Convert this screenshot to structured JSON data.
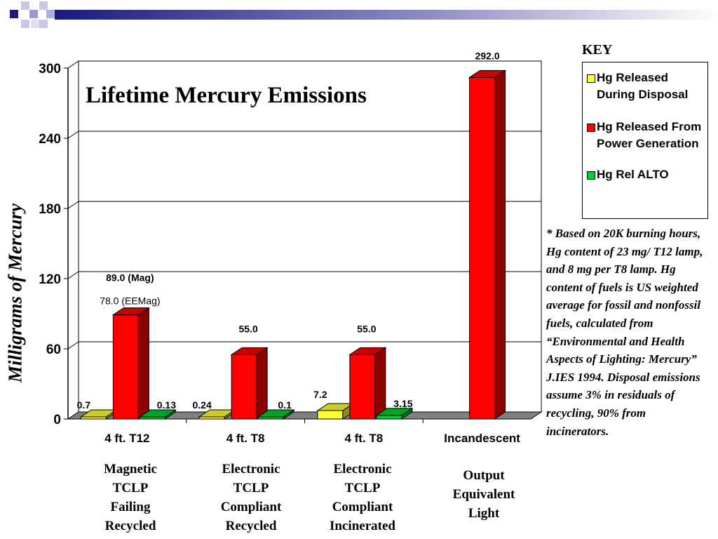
{
  "title": "Lifetime Mercury Emissions",
  "ylabel": "Milligrams of Mercury",
  "key_title": "KEY",
  "legend": [
    {
      "label": "Hg Released During Disposal",
      "color": "#ffff33"
    },
    {
      "label": "Hg Released From Power Generation",
      "color": "#ff0000"
    },
    {
      "label": "Hg Rel ALTO",
      "color": "#00cc33"
    }
  ],
  "footnote": "* Based on 20K burning hours, Hg content of 23 mg/ T12 lamp, and 8 mg per T8 lamp.  Hg content of fuels is US weighted average for fossil and nonfossil fuels, calculated from “Environmental and Health Aspects of Lighting: Mercury” J.IES 1994.  Disposal emissions assume 3%  in residuals of recycling, 90%  from incinerators.",
  "category_descriptions": [
    "Magnetic\nTCLP\nFailing\nRecycled",
    "Electronic\nTCLP\nCompliant\nRecycled",
    "Electronic\nTCLP\nCompliant\nIncinerated",
    "Output\nEquivalent\nLight"
  ],
  "chart_data": {
    "type": "bar",
    "title": "Lifetime Mercury Emissions",
    "ylabel": "Milligrams of Mercury",
    "xlabel": "",
    "categories": [
      "4 ft. T12",
      "4 ft. T8",
      "4 ft. T8",
      "Incandescent"
    ],
    "ylim": [
      0,
      300
    ],
    "yticks": [
      0,
      60,
      120,
      180,
      240,
      300
    ],
    "grid": true,
    "legend_position": "right",
    "series": [
      {
        "name": "Hg Released During Disposal",
        "color": "#ffff33",
        "values": [
          0.7,
          0.24,
          7.2,
          null
        ],
        "labels": [
          "0.7",
          "0.24",
          "7.2",
          ""
        ]
      },
      {
        "name": "Hg Released From Power Generation",
        "color": "#ff0000",
        "values": [
          89.0,
          55.0,
          55.0,
          292.0
        ],
        "labels": [
          "89.0 (Mag)",
          "55.0",
          "55.0",
          "292.0"
        ]
      },
      {
        "name": "Hg Rel ALTO",
        "color": "#00cc33",
        "values": [
          0.13,
          0.1,
          3.15,
          null
        ],
        "labels": [
          "0.13",
          "0.1",
          "3.15",
          ""
        ]
      }
    ],
    "annotations": [
      {
        "text": "78.0 (EEMag)",
        "category": "4 ft. T12"
      }
    ]
  }
}
